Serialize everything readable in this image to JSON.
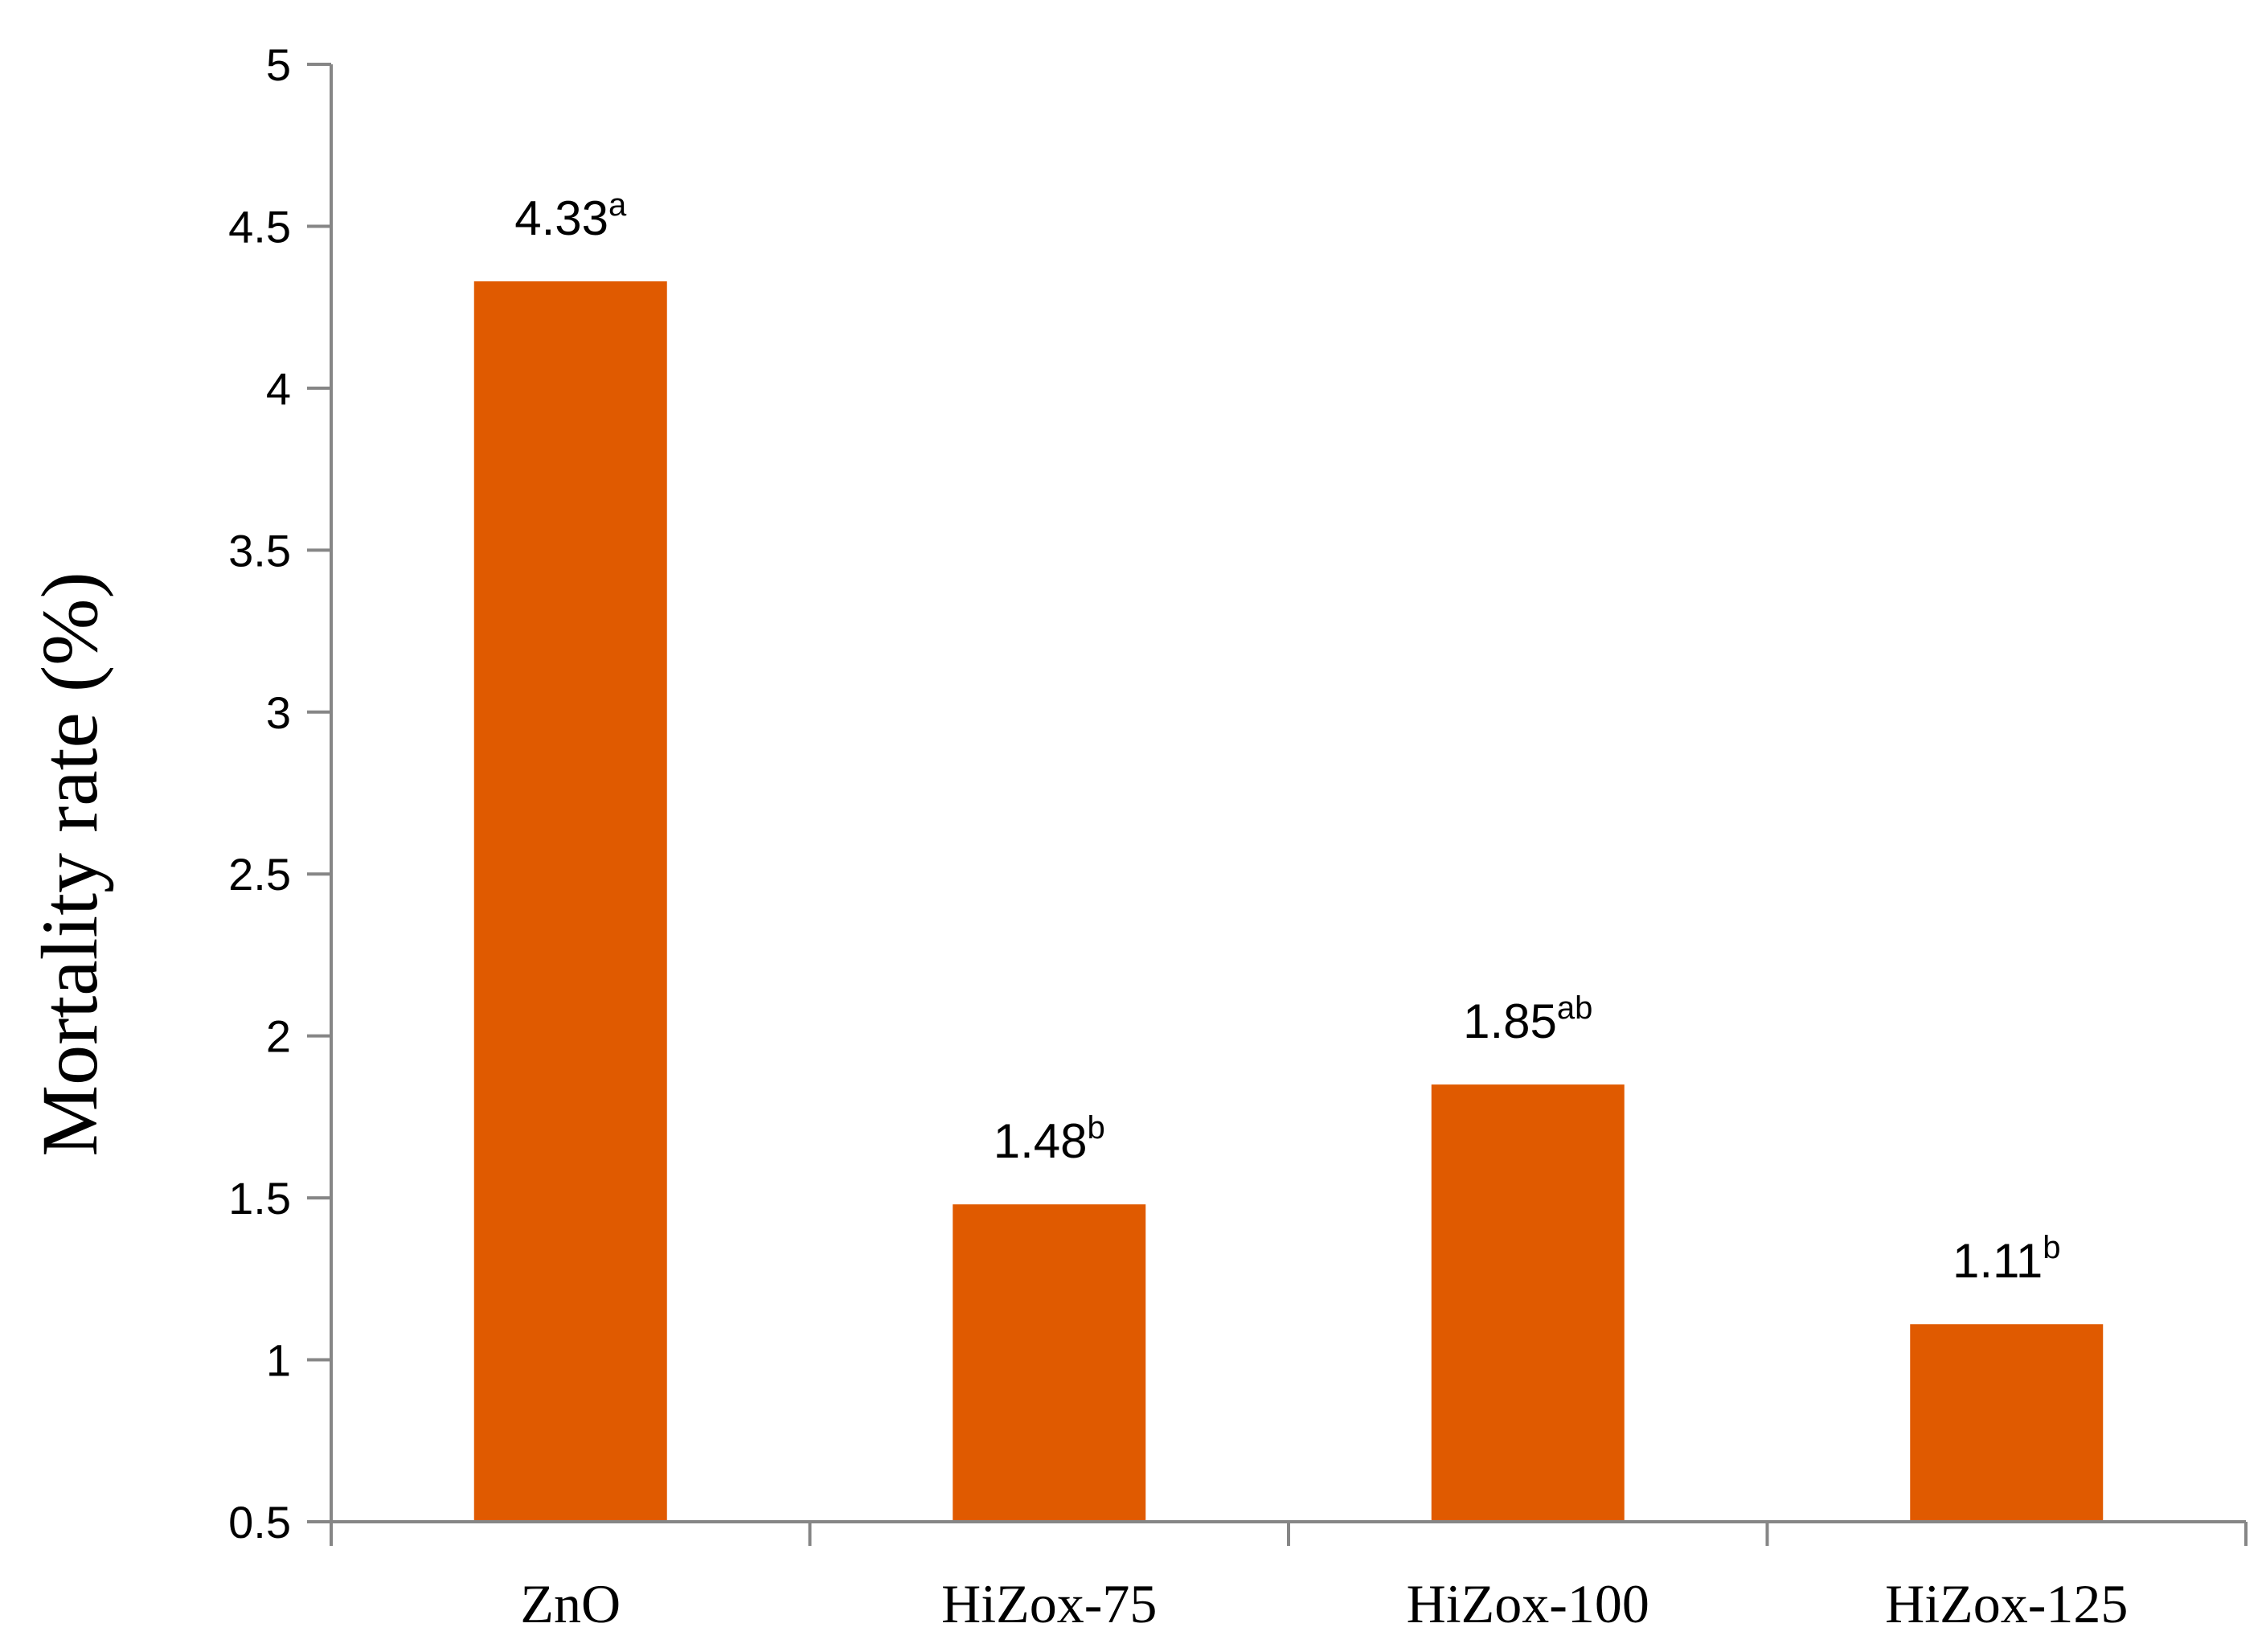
{
  "chart_data": {
    "type": "bar",
    "title": "",
    "xlabel": "",
    "ylabel": "Mortality rate (%)",
    "ylim": [
      0.5,
      5
    ],
    "yticks": [
      "0.5",
      "1",
      "1.5",
      "2",
      "2.5",
      "3",
      "3.5",
      "4",
      "4.5",
      "5"
    ],
    "categories": [
      "ZnO",
      "HiZox-75",
      "HiZox-100",
      "HiZox-125"
    ],
    "values": [
      4.33,
      1.48,
      1.85,
      1.11
    ],
    "data_labels": [
      {
        "value": "4.33",
        "sup": "a"
      },
      {
        "value": "1.48",
        "sup": "b"
      },
      {
        "value": "1.85",
        "sup": "ab"
      },
      {
        "value": "1.11",
        "sup": "b"
      }
    ],
    "bar_color": "#E05A00",
    "axis_color": "#868686",
    "grid": false,
    "legend": "none"
  }
}
